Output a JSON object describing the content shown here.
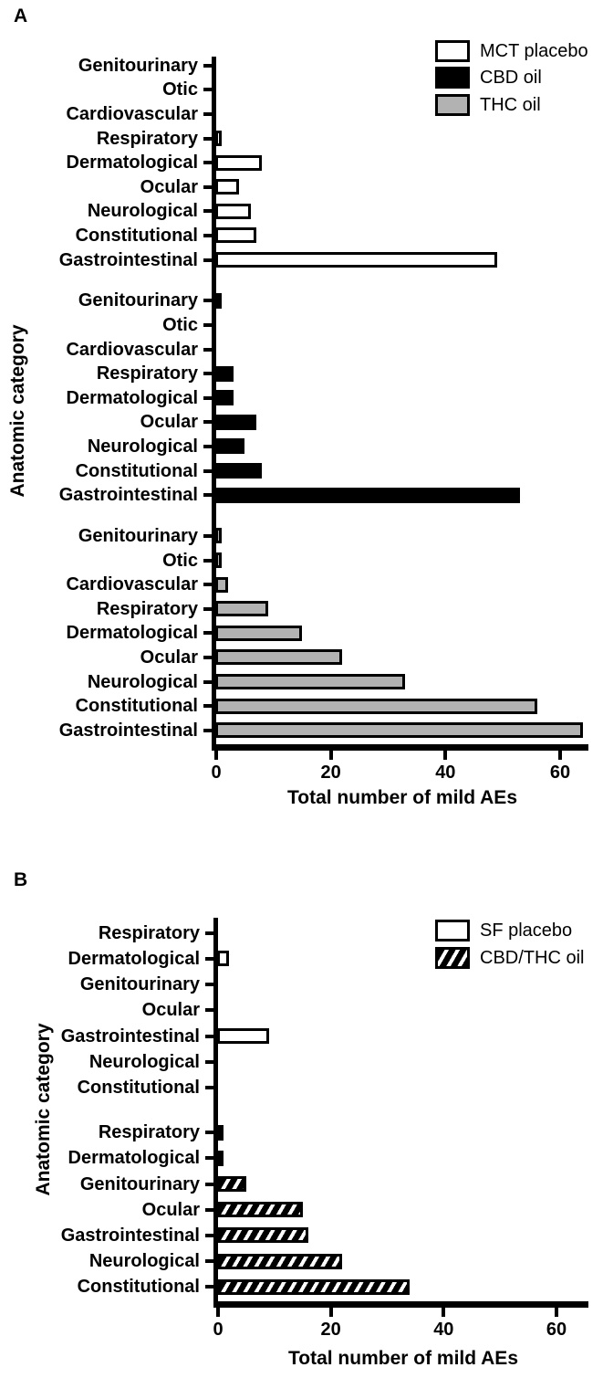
{
  "figure": {
    "panels": [
      "A",
      "B"
    ],
    "x_axis_label": "Total number of mild AEs",
    "y_axis_label": "Anatomic category"
  },
  "colors": {
    "bar_white": "#ffffff",
    "bar_black": "#000000",
    "bar_gray": "#b2b2b2",
    "axis": "#000000",
    "hatch_style": "white diagonal stripes on black"
  },
  "chart_data": [
    {
      "panel": "A",
      "type": "bar",
      "orientation": "horizontal",
      "xlabel": "Total number of mild AEs",
      "ylabel": "Anatomic category",
      "xticks": [
        0,
        20,
        40,
        60
      ],
      "xlim": [
        0,
        65
      ],
      "grid": false,
      "legend_position": "top-right",
      "categories": [
        "Genitourinary",
        "Otic",
        "Cardiovascular",
        "Respiratory",
        "Dermatological",
        "Ocular",
        "Neurological",
        "Constitutional",
        "Gastrointestinal"
      ],
      "series": [
        {
          "name": "MCT placebo",
          "fill": "white",
          "values": [
            0,
            0,
            0,
            1,
            8,
            4,
            6,
            7,
            49
          ]
        },
        {
          "name": "CBD oil",
          "fill": "black",
          "values": [
            1,
            0,
            0,
            3,
            3,
            7,
            5,
            8,
            53
          ]
        },
        {
          "name": "THC oil",
          "fill": "gray",
          "values": [
            1,
            1,
            2,
            9,
            15,
            22,
            33,
            56,
            64
          ]
        }
      ]
    },
    {
      "panel": "B",
      "type": "bar",
      "orientation": "horizontal",
      "xlabel": "Total number of mild AEs",
      "ylabel": "Anatomic category",
      "xticks": [
        0,
        20,
        40,
        60
      ],
      "xlim": [
        0,
        65
      ],
      "grid": false,
      "legend_position": "top-right",
      "categories": [
        "Respiratory",
        "Dermatological",
        "Genitourinary",
        "Ocular",
        "Gastrointestinal",
        "Neurological",
        "Constitutional"
      ],
      "series": [
        {
          "name": "SF placebo",
          "fill": "white",
          "values": [
            0,
            2,
            0,
            0,
            9,
            0,
            0
          ]
        },
        {
          "name": "CBD/THC oil",
          "fill": "hatch",
          "values": [
            1,
            1,
            5,
            15,
            16,
            22,
            34
          ]
        }
      ]
    }
  ]
}
